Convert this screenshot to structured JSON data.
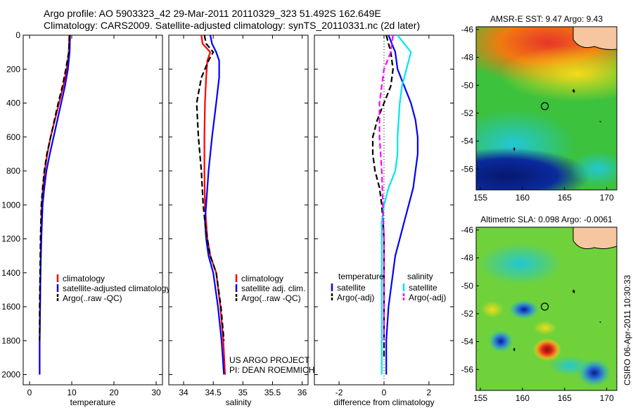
{
  "header": {
    "line1": "Argo profile: AO 5903323_42 29-Mar-2011 20110329_323 51.492S 162.649E",
    "line2": "Climatology: CARS2009. Satellite-adjusted climatology: synTS_20110331.nc (2d later)"
  },
  "credit": {
    "line1": "US ARGO PROJECT",
    "line2": "PI: DEAN ROEMMICH"
  },
  "side_label": "CSIRO 06-Apr-2011 10:30:33",
  "colors": {
    "climatology": "#ff0000",
    "satellite": "#0000ff",
    "argo": "#000000",
    "sat_salinity": "#00e5ee",
    "argo_salinity": "#ff00ff"
  },
  "chart_data": [
    {
      "type": "line",
      "id": "temperature",
      "xlabel": "temperature",
      "xlim": [
        -1.5,
        31.5
      ],
      "ylim": [
        2060,
        0
      ],
      "xticks": [
        0,
        10,
        20,
        30
      ],
      "yticks": [
        0,
        200,
        400,
        600,
        800,
        1000,
        1200,
        1400,
        1600,
        1800,
        2000
      ],
      "legend": [
        "climatology",
        "satellite-adjusted climatology",
        "Argo(..raw -QC)"
      ],
      "series": [
        {
          "name": "climatology",
          "style": "solid",
          "color": "#ff0000",
          "x": [
            9.4,
            9.3,
            8.8,
            8.0,
            7.0,
            6.0,
            5.0,
            4.2,
            3.6,
            3.2,
            2.9,
            2.7,
            2.6,
            2.5,
            2.4,
            2.4
          ],
          "y": [
            0,
            100,
            200,
            300,
            400,
            500,
            600,
            700,
            800,
            900,
            1000,
            1200,
            1400,
            1600,
            1800,
            2000
          ]
        },
        {
          "name": "satellite-adjusted climatology",
          "style": "solid",
          "color": "#0000ff",
          "x": [
            9.6,
            9.5,
            9.1,
            8.4,
            7.5,
            6.6,
            5.7,
            4.8,
            4.0,
            3.5,
            3.1,
            2.8,
            2.6,
            2.5,
            2.4,
            2.4
          ],
          "y": [
            0,
            100,
            200,
            300,
            400,
            500,
            600,
            700,
            800,
            900,
            1000,
            1200,
            1400,
            1600,
            1800,
            2000
          ]
        },
        {
          "name": "Argo(..raw -QC)",
          "style": "dashed",
          "color": "#000000",
          "x": [
            9.5,
            9.3,
            8.6,
            7.8,
            6.8,
            5.9,
            5.0,
            4.1,
            3.5,
            3.1,
            2.8,
            2.6,
            2.5,
            2.4,
            2.4
          ],
          "y": [
            0,
            100,
            200,
            300,
            400,
            500,
            600,
            700,
            800,
            900,
            1000,
            1200,
            1400,
            1600,
            1800
          ]
        }
      ]
    },
    {
      "type": "line",
      "id": "salinity",
      "xlabel": "salinity",
      "xlim": [
        33.75,
        36.1
      ],
      "ylim": [
        2060,
        0
      ],
      "xticks": [
        34,
        34.5,
        35,
        35.5,
        36
      ],
      "legend": [
        "climatology",
        "satellite adj. clim.",
        "Argo(..raw -QC)"
      ],
      "series": [
        {
          "name": "climatology",
          "style": "solid",
          "color": "#ff0000",
          "x": [
            34.3,
            34.32,
            34.45,
            34.4,
            34.38,
            34.36,
            34.35,
            34.35,
            34.36,
            34.38,
            34.4,
            34.45,
            34.55,
            34.62,
            34.67,
            34.7
          ],
          "y": [
            0,
            50,
            100,
            150,
            250,
            400,
            600,
            800,
            1000,
            1100,
            1200,
            1300,
            1400,
            1600,
            1800,
            2000
          ]
        },
        {
          "name": "satellite adj. clim.",
          "style": "solid",
          "color": "#0000ff",
          "x": [
            34.45,
            34.48,
            34.55,
            34.6,
            34.6,
            34.55,
            34.48,
            34.42,
            34.38,
            34.36,
            34.38,
            34.42,
            34.5,
            34.58,
            34.64,
            34.68
          ],
          "y": [
            0,
            50,
            100,
            150,
            250,
            400,
            600,
            800,
            1000,
            1100,
            1200,
            1300,
            1400,
            1600,
            1800,
            2000
          ]
        },
        {
          "name": "Argo(..raw -QC)",
          "style": "dashed",
          "color": "#000000",
          "x": [
            34.35,
            34.38,
            34.5,
            34.42,
            34.3,
            34.22,
            34.25,
            34.3,
            34.33,
            34.36,
            34.4,
            34.45,
            34.55,
            34.63,
            34.68
          ],
          "y": [
            0,
            50,
            100,
            150,
            250,
            400,
            600,
            800,
            1000,
            1100,
            1200,
            1300,
            1400,
            1600,
            1800
          ]
        }
      ]
    },
    {
      "type": "line",
      "id": "difference",
      "xlabel": "difference from climatology",
      "xlim": [
        -3.1,
        3.1
      ],
      "ylim": [
        2060,
        0
      ],
      "xticks": [
        -2,
        0,
        2
      ],
      "legend_titles": [
        "temperature",
        "salinity"
      ],
      "legend": [
        "satellite",
        "Argo(-adj)",
        "satellite",
        "Argo(-adj)"
      ],
      "series": [
        {
          "name": "satellite",
          "group": "temperature",
          "style": "solid",
          "color": "#0000ff",
          "x": [
            0.2,
            0.5,
            0.6,
            0.9,
            1.2,
            1.4,
            1.5,
            1.5,
            1.4,
            1.3,
            1.1,
            0.9,
            0.7,
            0.5,
            0.4,
            0.3,
            0.2,
            0.1,
            0.1
          ],
          "y": [
            0,
            100,
            200,
            300,
            400,
            500,
            600,
            700,
            800,
            900,
            1000,
            1100,
            1200,
            1300,
            1400,
            1500,
            1600,
            1800,
            2000
          ]
        },
        {
          "name": "Argo(-adj)",
          "group": "temperature",
          "style": "dashed",
          "color": "#000000",
          "x": [
            0.1,
            0.3,
            0.4,
            0.3,
            0.0,
            -0.3,
            -0.5,
            -0.5,
            -0.4,
            -0.2,
            -0.1,
            0.0,
            0.0,
            0.0,
            0.0,
            0.0
          ],
          "y": [
            0,
            100,
            200,
            300,
            400,
            500,
            600,
            700,
            800,
            900,
            1000,
            1200,
            1400,
            1600,
            1800,
            1900
          ]
        },
        {
          "name": "satellite",
          "group": "salinity",
          "style": "solid",
          "color": "#00e5ee",
          "x": [
            0.6,
            1.2,
            1.0,
            0.8,
            0.7,
            0.6,
            0.6,
            0.5,
            0.2,
            0.0,
            -0.1,
            -0.1,
            -0.1,
            -0.1,
            -0.1
          ],
          "y": [
            0,
            100,
            200,
            300,
            400,
            600,
            700,
            800,
            900,
            1000,
            1100,
            1200,
            1500,
            1800,
            2000
          ]
        },
        {
          "name": "Argo(-adj)",
          "group": "salinity",
          "style": "dashed",
          "color": "#ff00ff",
          "x": [
            0.4,
            0.3,
            0.0,
            -0.1,
            -0.2,
            -0.2,
            -0.1,
            -0.05,
            0.0,
            0.0
          ],
          "y": [
            0,
            100,
            200,
            300,
            400,
            600,
            800,
            1000,
            1200,
            1800
          ]
        }
      ]
    },
    {
      "type": "heatmap",
      "id": "amsr-sst",
      "title": "AMSR-E SST: 9.47  Argo: 9.43",
      "xlim": [
        154.5,
        171.2
      ],
      "ylim": [
        -57.5,
        -45.8
      ],
      "xticks": [
        155,
        160,
        165,
        170
      ],
      "yticks": [
        -46,
        -48,
        -50,
        -52,
        -54,
        -56
      ],
      "argo_position": [
        162.649,
        -51.492
      ],
      "regions": [
        {
          "shape": "field",
          "color": "#1fb845"
        },
        {
          "shape": "warm-north",
          "color": "#f07a10"
        },
        {
          "shape": "cold-south",
          "color": "#0a2a9e"
        },
        {
          "shape": "land",
          "color": "#f5c6a0"
        }
      ]
    },
    {
      "type": "heatmap",
      "id": "altimetric-sla",
      "title": "Altimetric SLA: 0.098  Argo: -0.0061",
      "xlim": [
        154.5,
        171.2
      ],
      "ylim": [
        -57.5,
        -45.8
      ],
      "xticks": [
        155,
        160,
        165,
        170
      ],
      "yticks": [
        -46,
        -48,
        -50,
        -52,
        -54,
        -56
      ],
      "argo_position": [
        162.649,
        -51.492
      ],
      "regions": [
        {
          "shape": "field",
          "color": "#6fd23a"
        },
        {
          "shape": "low",
          "color": "#2a6fd8"
        },
        {
          "shape": "high",
          "color": "#d8261f"
        },
        {
          "shape": "land",
          "color": "#f5c6a0"
        }
      ]
    }
  ]
}
